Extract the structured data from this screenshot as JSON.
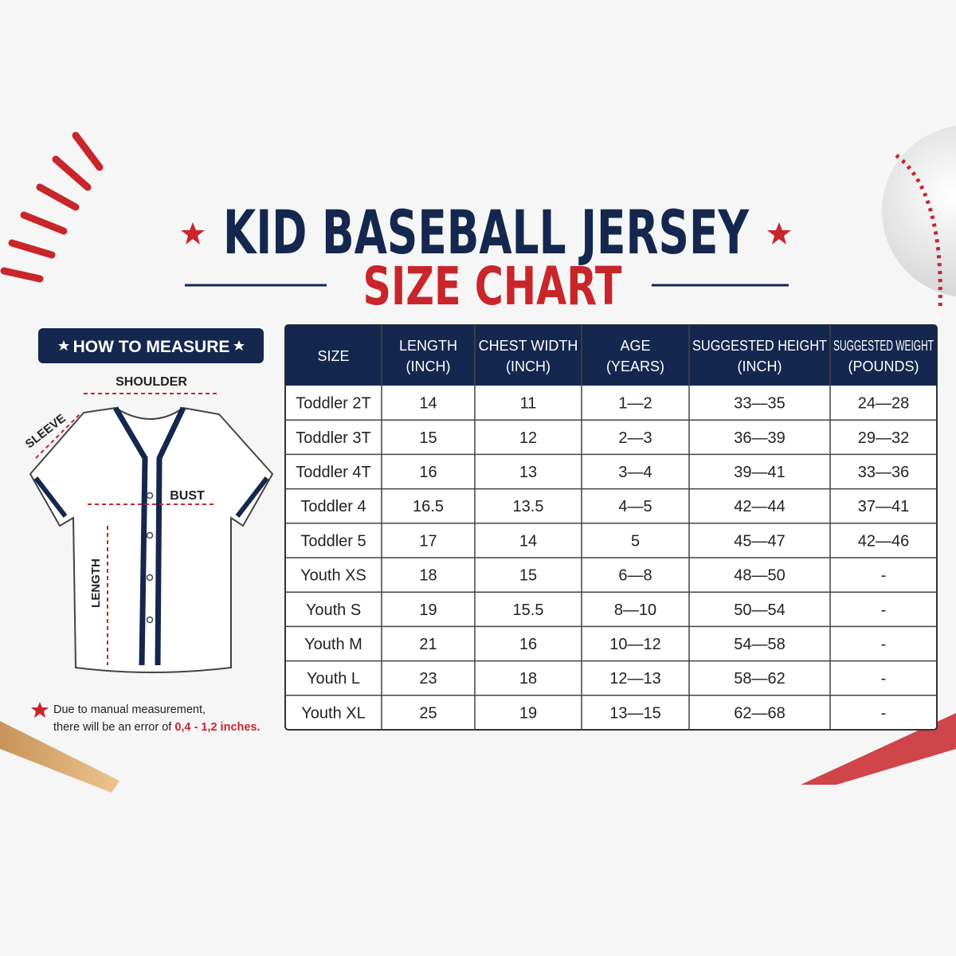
{
  "header": {
    "title": "KID BASEBALL JERSEY",
    "subtitle": "SIZE CHART"
  },
  "measure": {
    "title": "HOW TO MEASURE",
    "labels": {
      "shoulder": "SHOULDER",
      "sleeve": "SLEEVE",
      "bust": "BUST",
      "length": "LENGTH"
    },
    "note": {
      "line1": "Due to manual measurement,",
      "line2": "there will be an error of",
      "highlight": "0,4 - 1,2 inches."
    }
  },
  "table": {
    "headers": [
      [
        "SIZE"
      ],
      [
        "LENGTH",
        "(INCH)"
      ],
      [
        "CHEST WIDTH",
        "(INCH)"
      ],
      [
        "AGE",
        "(YEARS)"
      ],
      [
        "SUGGESTED HEIGHT",
        "(INCH)"
      ],
      [
        "SUGGESTED WEIGHT",
        "(POUNDS)"
      ]
    ],
    "rows": [
      [
        "Toddler 2T",
        "14",
        "11",
        "1—2",
        "33—35",
        "24—28"
      ],
      [
        "Toddler 3T",
        "15",
        "12",
        "2—3",
        "36—39",
        "29—32"
      ],
      [
        "Toddler 4T",
        "16",
        "13",
        "3—4",
        "39—41",
        "33—36"
      ],
      [
        "Toddler 4",
        "16.5",
        "13.5",
        "4—5",
        "42—44",
        "37—41"
      ],
      [
        "Toddler 5",
        "17",
        "14",
        "5",
        "45—47",
        "42—46"
      ],
      [
        "Youth XS",
        "18",
        "15",
        "6—8",
        "48—50",
        "-"
      ],
      [
        "Youth S",
        "19",
        "15.5",
        "8—10",
        "50—54",
        "-"
      ],
      [
        "Youth M",
        "21",
        "16",
        "10—12",
        "54—58",
        "-"
      ],
      [
        "Youth L",
        "23",
        "18",
        "12—13",
        "58—62",
        "-"
      ],
      [
        "Youth XL",
        "25",
        "19",
        "13—15",
        "62—68",
        "-"
      ]
    ]
  }
}
